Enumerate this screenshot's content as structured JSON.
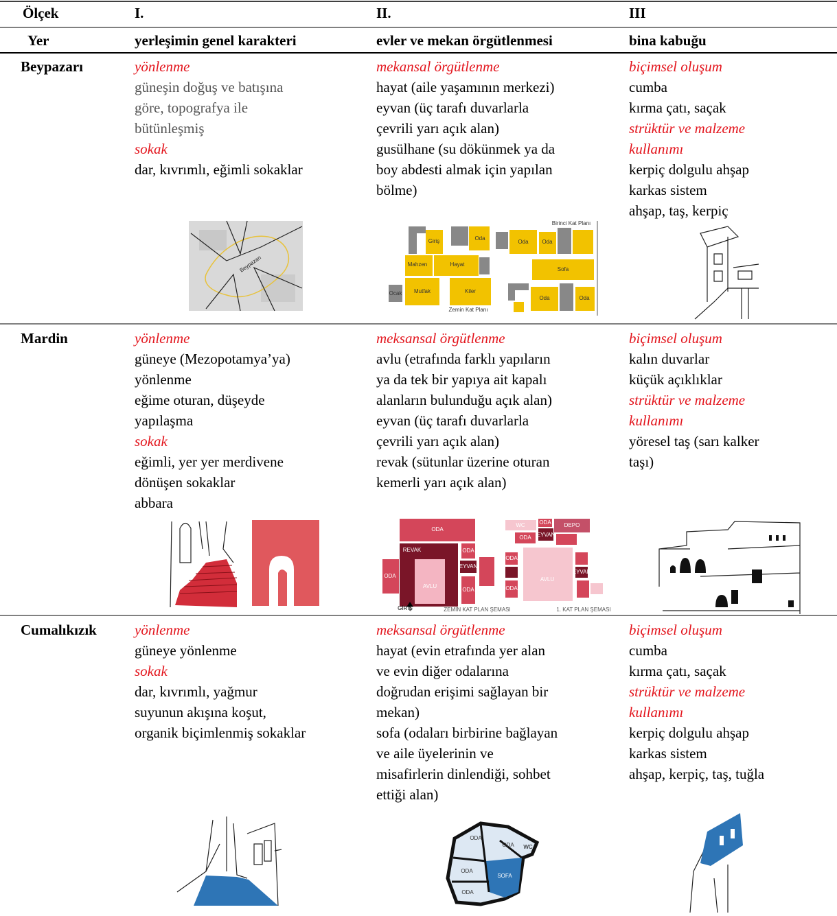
{
  "table": {
    "header_rows": [
      [
        "Ölçek",
        "I.",
        "II.",
        "III"
      ],
      [
        "Yer",
        "yerleşimin genel karakteri",
        "evler ve mekan örgütlenmesi",
        "bina kabuğu"
      ]
    ],
    "rows": [
      {
        "place": "Beypazarı",
        "cells": [
          [
            {
              "text": "yönlenme",
              "style": "heading"
            },
            {
              "text": "güneşin doğuş ve batışına",
              "style": "muted"
            },
            {
              "text": "göre, topografya ile",
              "style": "muted"
            },
            {
              "text": "bütünleşmiş",
              "style": "muted"
            },
            {
              "text": "sokak",
              "style": "heading"
            },
            {
              "text": "dar, kıvrımlı, eğimli sokaklar",
              "style": "body"
            }
          ],
          [
            {
              "text": "mekansal örgütlenme",
              "style": "heading"
            },
            {
              "text": "hayat (aile yaşamının merkezi)",
              "style": "body"
            },
            {
              "text": "eyvan (üç tarafı duvarlarla",
              "style": "body"
            },
            {
              "text": "çevrili yarı açık alan)",
              "style": "body"
            },
            {
              "text": "gusülhane (su dökünmek ya da",
              "style": "body"
            },
            {
              "text": "boy abdesti almak için yapılan",
              "style": "body"
            },
            {
              "text": "bölme)",
              "style": "body"
            }
          ],
          [
            {
              "text": "biçimsel oluşum",
              "style": "heading"
            },
            {
              "text": "cumba",
              "style": "body"
            },
            {
              "text": "kırma çatı, saçak",
              "style": "body"
            },
            {
              "text": "strüktür ve malzeme",
              "style": "heading"
            },
            {
              "text": "kullanımı",
              "style": "heading"
            },
            {
              "text": "kerpiç dolgulu ahşap",
              "style": "body"
            },
            {
              "text": "karkas sistem",
              "style": "body"
            },
            {
              "text": "ahşap, taş,  kerpiç",
              "style": "body"
            }
          ]
        ],
        "figure_labels": [
          "Beypazarı",
          "Giriş",
          "Oda",
          "Mahzen",
          "Hayat",
          "Ocak",
          "Mutfak",
          "Kiler",
          "Zemin Kat Planı",
          "Oda",
          "Oda",
          "Sofa",
          "Oda",
          "Oda",
          "Birinci Kat Planı"
        ]
      },
      {
        "place": "Mardin",
        "cells": [
          [
            {
              "text": "yönlenme",
              "style": "heading"
            },
            {
              "text": "güneye (Mezopotamya’ya)",
              "style": "body"
            },
            {
              "text": "yönlenme",
              "style": "body"
            },
            {
              "text": "eğime oturan, düşeyde",
              "style": "body"
            },
            {
              "text": "yapılaşma",
              "style": "body"
            },
            {
              "text": "sokak",
              "style": "heading"
            },
            {
              "text": "eğimli, yer yer merdivene",
              "style": "body"
            },
            {
              "text": "dönüşen sokaklar",
              "style": "body"
            },
            {
              "text": "abbara",
              "style": "body"
            }
          ],
          [
            {
              "text": "meksansal örgütlenme",
              "style": "heading"
            },
            {
              "text": "avlu (etrafında farklı yapıların",
              "style": "body"
            },
            {
              "text": "ya da tek bir yapıya ait kapalı",
              "style": "body"
            },
            {
              "text": "alanların bulunduğu açık alan)",
              "style": "body"
            },
            {
              "text": "eyvan (üç tarafı duvarlarla",
              "style": "body"
            },
            {
              "text": "çevrili yarı açık alan)",
              "style": "body"
            },
            {
              "text": "revak (sütunlar üzerine oturan",
              "style": "body"
            },
            {
              "text": "kemerli yarı açık alan)",
              "style": "body"
            }
          ],
          [
            {
              "text": "biçimsel oluşum",
              "style": "heading"
            },
            {
              "text": "kalın duvarlar",
              "style": "body"
            },
            {
              "text": "küçük açıklıklar",
              "style": "body"
            },
            {
              "text": "strüktür ve malzeme",
              "style": "heading"
            },
            {
              "text": "kullanımı",
              "style": "heading"
            },
            {
              "text": "yöresel taş (sarı kalker",
              "style": "body"
            },
            {
              "text": "taşı)",
              "style": "body"
            }
          ]
        ],
        "figure_labels": [
          "ODA",
          "REVAK",
          "ODA",
          "EYVAN",
          "ODA",
          "ODA",
          "AVLU",
          "GİRİŞ",
          "ZEMİN KAT PLAN ŞEMASI",
          "WC",
          "ODA",
          "DEPO",
          "ODA",
          "EYVAN",
          "ODA",
          "AVLU",
          "EYVAN",
          "ODA",
          "1. KAT PLAN ŞEMASI"
        ]
      },
      {
        "place": "Cumalıkızık",
        "cells": [
          [
            {
              "text": "yönlenme",
              "style": "heading"
            },
            {
              "text": "güneye yönlenme",
              "style": "body"
            },
            {
              "text": "sokak",
              "style": "heading"
            },
            {
              "text": "dar, kıvrımlı, yağmur",
              "style": "body"
            },
            {
              "text": "suyunun akışına koşut,",
              "style": "body"
            },
            {
              "text": "organik biçimlenmiş sokaklar",
              "style": "body"
            }
          ],
          [
            {
              "text": "meksansal örgütlenme",
              "style": "heading"
            },
            {
              "text": "hayat (evin etrafında yer alan",
              "style": "body"
            },
            {
              "text": "ve evin diğer odalarına",
              "style": "body"
            },
            {
              "text": "doğrudan erişimi sağlayan bir",
              "style": "body"
            },
            {
              "text": "mekan)",
              "style": "body"
            },
            {
              "text": "sofa (odaları birbirine bağlayan",
              "style": "body"
            },
            {
              "text": "ve aile üyelerinin ve",
              "style": "body"
            },
            {
              "text": "misafirlerin dinlendiği, sohbet",
              "style": "body"
            },
            {
              "text": "ettiği alan)",
              "style": "body"
            }
          ],
          [
            {
              "text": "biçimsel oluşum",
              "style": "heading"
            },
            {
              "text": "cumba",
              "style": "body"
            },
            {
              "text": "kırma çatı, saçak",
              "style": "body"
            },
            {
              "text": "strüktür ve malzeme",
              "style": "heading"
            },
            {
              "text": "kullanımı",
              "style": "heading"
            },
            {
              "text": "kerpiç dolgulu ahşap",
              "style": "body"
            },
            {
              "text": "karkas sistem",
              "style": "body"
            },
            {
              "text": "ahşap, kerpiç, taş, tuğla",
              "style": "body"
            }
          ]
        ],
        "figure_labels": [
          "ODA",
          "ODA",
          "WC",
          "ODA",
          "SOFA",
          "ODA"
        ]
      }
    ]
  }
}
